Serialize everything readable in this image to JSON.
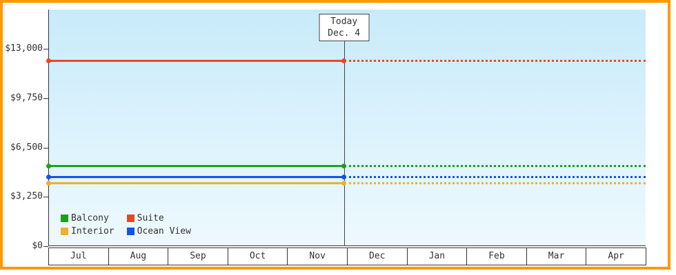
{
  "chart_data": {
    "type": "line",
    "title": "",
    "xlabel": "",
    "ylabel": "",
    "x_categories": [
      "Jul",
      "Aug",
      "Sep",
      "Oct",
      "Nov",
      "Dec",
      "Jan",
      "Feb",
      "Mar",
      "Apr"
    ],
    "y_ticks": [
      {
        "label": "$13,000",
        "value": 13000
      },
      {
        "label": "$9,750",
        "value": 9750
      },
      {
        "label": "$6,500",
        "value": 6500
      },
      {
        "label": "$3,250",
        "value": 3250
      },
      {
        "label": "$0",
        "value": 0
      }
    ],
    "ylim": [
      0,
      15600
    ],
    "grid": "off",
    "legend_position": "bottom-left",
    "today": {
      "line1": "Today",
      "line2": "Dec. 4",
      "fraction": 0.495
    },
    "series": [
      {
        "name": "Suite",
        "color": "#ee4423",
        "value": 12200,
        "style": "solid-then-dotted"
      },
      {
        "name": "Balcony",
        "color": "#1ba11b",
        "value": 5300,
        "style": "solid-then-dotted"
      },
      {
        "name": "Ocean View",
        "color": "#1453e8",
        "value": 4550,
        "style": "solid-then-dotted"
      },
      {
        "name": "Interior",
        "color": "#f0b02a",
        "value": 4150,
        "style": "solid-then-dotted"
      }
    ],
    "legend": [
      {
        "name": "Balcony",
        "color": "#1ba11b"
      },
      {
        "name": "Suite",
        "color": "#ee4423"
      },
      {
        "name": "Interior",
        "color": "#f0b02a"
      },
      {
        "name": "Ocean View",
        "color": "#1453e8"
      }
    ],
    "colors": {
      "frame_border": "#ff9900",
      "plot_gradient_top": "#c8ebfa",
      "plot_gradient_bottom": "#eef9fe",
      "axis": "#333333",
      "text": "#333333"
    }
  }
}
